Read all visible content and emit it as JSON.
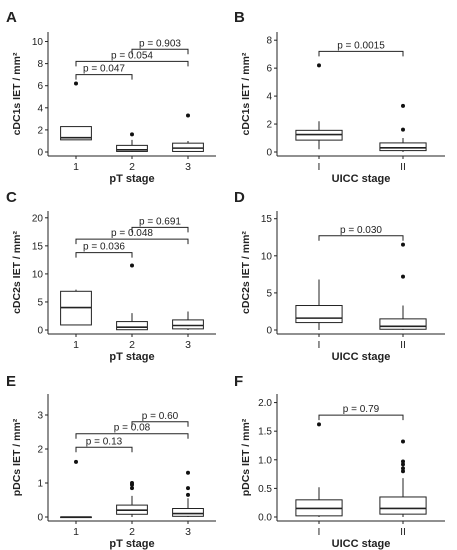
{
  "chart_data": [
    {
      "panel": "A",
      "type": "box",
      "xlabel": "pT stage",
      "ylabel": "cDC1s IET / mm²",
      "ylim": [
        0,
        10.5
      ],
      "yticks": [
        0,
        2,
        4,
        6,
        8,
        10
      ],
      "categories": [
        "1",
        "2",
        "3"
      ],
      "boxes": [
        {
          "q1": 1.1,
          "median": 1.3,
          "q3": 2.3,
          "lower": 1.1,
          "upper": 2.3,
          "outliers": [
            6.2
          ]
        },
        {
          "q1": 0.05,
          "median": 0.2,
          "q3": 0.6,
          "lower": 0.0,
          "upper": 1.1,
          "outliers": [
            1.6
          ]
        },
        {
          "q1": 0.05,
          "median": 0.35,
          "q3": 0.8,
          "lower": 0.0,
          "upper": 1.0,
          "outliers": [
            3.3
          ]
        }
      ],
      "comparisons": [
        {
          "from": 1,
          "to": 2,
          "level": 7.0,
          "label": "p = 0.047"
        },
        {
          "from": 1,
          "to": 3,
          "level": 8.2,
          "label": "p = 0.054"
        },
        {
          "from": 2,
          "to": 3,
          "level": 9.3,
          "label": "p = 0.903"
        }
      ]
    },
    {
      "panel": "B",
      "type": "box",
      "xlabel": "UICC stage",
      "ylabel": "cDC1s IET / mm²",
      "ylim": [
        0,
        8.3
      ],
      "yticks": [
        0,
        2,
        4,
        6,
        8
      ],
      "categories": [
        "I",
        "II"
      ],
      "boxes": [
        {
          "q1": 0.85,
          "median": 1.25,
          "q3": 1.55,
          "lower": 0.2,
          "upper": 2.2,
          "outliers": [
            6.2
          ]
        },
        {
          "q1": 0.1,
          "median": 0.3,
          "q3": 0.65,
          "lower": 0.0,
          "upper": 1.0,
          "outliers": [
            1.6,
            3.3
          ]
        }
      ],
      "comparisons": [
        {
          "from": 1,
          "to": 2,
          "level": 7.2,
          "label": "p = 0.0015"
        }
      ]
    },
    {
      "panel": "C",
      "type": "box",
      "xlabel": "pT stage",
      "ylabel": "cDC2s IET / mm²",
      "ylim": [
        0,
        20.5
      ],
      "yticks": [
        0,
        5,
        10,
        15,
        20
      ],
      "categories": [
        "1",
        "2",
        "3"
      ],
      "boxes": [
        {
          "q1": 0.9,
          "median": 4.0,
          "q3": 6.9,
          "lower": 0.9,
          "upper": 7.2,
          "outliers": []
        },
        {
          "q1": 0.05,
          "median": 0.5,
          "q3": 1.5,
          "lower": 0.0,
          "upper": 3.0,
          "outliers": [
            11.5
          ]
        },
        {
          "q1": 0.2,
          "median": 0.8,
          "q3": 1.8,
          "lower": 0.0,
          "upper": 3.3,
          "outliers": []
        }
      ],
      "comparisons": [
        {
          "from": 1,
          "to": 2,
          "level": 13.8,
          "label": "p = 0.036"
        },
        {
          "from": 1,
          "to": 3,
          "level": 16.2,
          "label": "p = 0.048"
        },
        {
          "from": 2,
          "to": 3,
          "level": 18.3,
          "label": "p = 0.691"
        }
      ]
    },
    {
      "panel": "D",
      "type": "box",
      "xlabel": "UICC stage",
      "ylabel": "cDC2s IET / mm²",
      "ylim": [
        0,
        15.5
      ],
      "yticks": [
        0,
        5,
        10,
        15
      ],
      "categories": [
        "I",
        "II"
      ],
      "boxes": [
        {
          "q1": 1.0,
          "median": 1.6,
          "q3": 3.3,
          "lower": 0.0,
          "upper": 6.8,
          "outliers": []
        },
        {
          "q1": 0.1,
          "median": 0.5,
          "q3": 1.5,
          "lower": 0.0,
          "upper": 3.3,
          "outliers": [
            7.2,
            11.5
          ]
        }
      ],
      "comparisons": [
        {
          "from": 1,
          "to": 2,
          "level": 12.7,
          "label": "p = 0.030"
        }
      ]
    },
    {
      "panel": "E",
      "type": "box",
      "xlabel": "pT stage",
      "ylabel": "pDCs IET / mm²",
      "ylim": [
        0,
        3.5
      ],
      "yticks": [
        0,
        1,
        2,
        3
      ],
      "categories": [
        "1",
        "2",
        "3"
      ],
      "boxes": [
        {
          "q1": 0.0,
          "median": 0.0,
          "q3": 0.0,
          "lower": 0.0,
          "upper": 0.0,
          "outliers": [
            1.62
          ]
        },
        {
          "q1": 0.08,
          "median": 0.2,
          "q3": 0.35,
          "lower": 0.0,
          "upper": 0.62,
          "outliers": [
            0.85,
            0.95,
            1.0
          ]
        },
        {
          "q1": 0.02,
          "median": 0.1,
          "q3": 0.25,
          "lower": 0.0,
          "upper": 0.55,
          "outliers": [
            0.65,
            0.85,
            1.3
          ]
        }
      ],
      "comparisons": [
        {
          "from": 1,
          "to": 2,
          "level": 2.05,
          "label": "p = 0.13"
        },
        {
          "from": 1,
          "to": 3,
          "level": 2.45,
          "label": "p = 0.08"
        },
        {
          "from": 2,
          "to": 3,
          "level": 2.8,
          "label": "p = 0.60"
        }
      ]
    },
    {
      "panel": "F",
      "type": "box",
      "xlabel": "UICC stage",
      "ylabel": "pDCs IET / mm²",
      "ylim": [
        0,
        2.08
      ],
      "yticks": [
        0.0,
        0.5,
        1.0,
        1.5,
        2.0
      ],
      "ytick_decimals": 1,
      "categories": [
        "I",
        "II"
      ],
      "boxes": [
        {
          "q1": 0.02,
          "median": 0.15,
          "q3": 0.3,
          "lower": 0.0,
          "upper": 0.52,
          "outliers": [
            1.62
          ]
        },
        {
          "q1": 0.05,
          "median": 0.15,
          "q3": 0.35,
          "lower": 0.0,
          "upper": 0.68,
          "outliers": [
            0.8,
            0.85,
            0.92,
            0.97,
            1.32
          ]
        }
      ],
      "comparisons": [
        {
          "from": 1,
          "to": 2,
          "level": 1.78,
          "label": "p = 0.79"
        }
      ]
    }
  ]
}
